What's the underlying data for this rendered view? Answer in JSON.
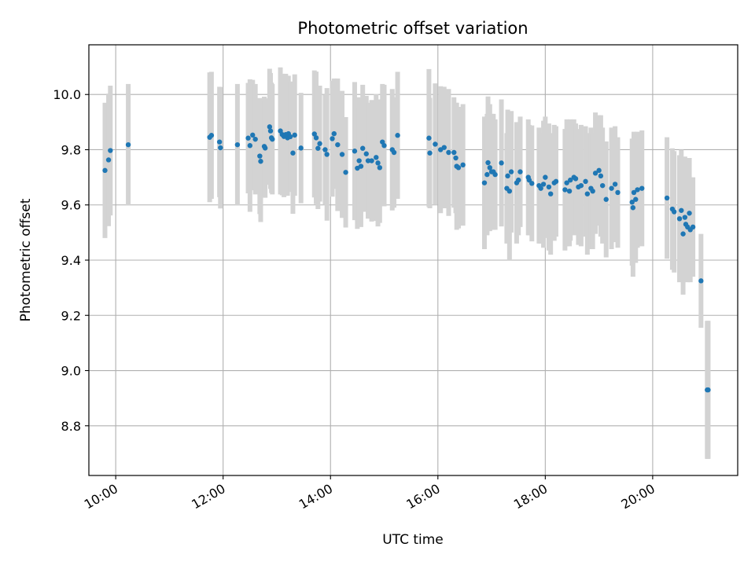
{
  "chart_data": {
    "type": "scatter",
    "title": "Photometric offset variation",
    "xlabel": "UTC time",
    "ylabel": "Photometric offset",
    "x_unit": "UTC time (HH:MM)",
    "xlim": [
      "09:30",
      "21:35"
    ],
    "ylim": [
      8.62,
      10.18
    ],
    "x_ticks": [
      "10:00",
      "12:00",
      "14:00",
      "16:00",
      "18:00",
      "20:00"
    ],
    "y_ticks": [
      "8.8",
      "9.0",
      "9.2",
      "9.4",
      "9.6",
      "9.8",
      "10.0"
    ],
    "grid": true,
    "legend": "none",
    "colors": {
      "points": "#1f77b4",
      "errorbars": "#d3d3d3",
      "grid": "#b0b0b0"
    },
    "series": [
      {
        "points": [
          [
            "09:48",
            9.725,
            0.245
          ],
          [
            "09:52",
            9.763,
            0.24
          ],
          [
            "09:54",
            9.797,
            0.235
          ],
          [
            "10:14",
            9.818,
            0.22
          ],
          [
            "11:45",
            9.845,
            0.235
          ],
          [
            "11:47",
            9.852,
            0.23
          ],
          [
            "11:56",
            9.828,
            0.2
          ],
          [
            "11:57",
            9.807,
            0.22
          ],
          [
            "12:16",
            9.818,
            0.22
          ],
          [
            "12:28",
            9.842,
            0.2
          ],
          [
            "12:30",
            9.815,
            0.24
          ],
          [
            "12:33",
            9.853,
            0.2
          ],
          [
            "12:36",
            9.838,
            0.2
          ],
          [
            "12:41",
            9.777,
            0.21
          ],
          [
            "12:42",
            9.758,
            0.22
          ],
          [
            "12:46",
            9.812,
            0.18
          ],
          [
            "12:47",
            9.806,
            0.18
          ],
          [
            "12:52",
            9.883,
            0.21
          ],
          [
            "12:53",
            9.868,
            0.21
          ],
          [
            "12:54",
            9.843,
            0.2
          ],
          [
            "12:55",
            9.838,
            0.2
          ],
          [
            "13:04",
            9.868,
            0.23
          ],
          [
            "13:06",
            9.855,
            0.22
          ],
          [
            "13:08",
            9.848,
            0.22
          ],
          [
            "13:10",
            9.855,
            0.22
          ],
          [
            "13:12",
            9.843,
            0.21
          ],
          [
            "13:13",
            9.858,
            0.21
          ],
          [
            "13:15",
            9.847,
            0.2
          ],
          [
            "13:18",
            9.788,
            0.22
          ],
          [
            "13:20",
            9.853,
            0.22
          ],
          [
            "13:27",
            9.806,
            0.2
          ],
          [
            "13:42",
            9.857,
            0.23
          ],
          [
            "13:44",
            9.843,
            0.24
          ],
          [
            "13:46",
            9.805,
            0.22
          ],
          [
            "13:48",
            9.822,
            0.21
          ],
          [
            "13:54",
            9.8,
            0.2
          ],
          [
            "13:56",
            9.783,
            0.24
          ],
          [
            "14:02",
            9.84,
            0.21
          ],
          [
            "14:04",
            9.858,
            0.2
          ],
          [
            "14:08",
            9.818,
            0.24
          ],
          [
            "14:13",
            9.783,
            0.23
          ],
          [
            "14:17",
            9.718,
            0.2
          ],
          [
            "14:27",
            9.795,
            0.25
          ],
          [
            "14:30",
            9.733,
            0.22
          ],
          [
            "14:32",
            9.76,
            0.23
          ],
          [
            "14:34",
            9.74,
            0.22
          ],
          [
            "14:36",
            9.805,
            0.23
          ],
          [
            "14:40",
            9.785,
            0.21
          ],
          [
            "14:42",
            9.76,
            0.21
          ],
          [
            "14:46",
            9.76,
            0.22
          ],
          [
            "14:51",
            9.772,
            0.23
          ],
          [
            "14:53",
            9.752,
            0.23
          ],
          [
            "14:55",
            9.735,
            0.2
          ],
          [
            "14:58",
            9.828,
            0.21
          ],
          [
            "15:00",
            9.815,
            0.22
          ],
          [
            "15:09",
            9.8,
            0.22
          ],
          [
            "15:11",
            9.79,
            0.2
          ],
          [
            "15:15",
            9.852,
            0.23
          ],
          [
            "15:50",
            9.842,
            0.25
          ],
          [
            "15:51",
            9.788,
            0.2
          ],
          [
            "15:57",
            9.82,
            0.22
          ],
          [
            "16:03",
            9.8,
            0.23
          ],
          [
            "16:07",
            9.808,
            0.22
          ],
          [
            "16:12",
            9.79,
            0.23
          ],
          [
            "16:18",
            9.79,
            0.2
          ],
          [
            "16:20",
            9.77,
            0.2
          ],
          [
            "16:21",
            9.74,
            0.23
          ],
          [
            "16:23",
            9.735,
            0.22
          ],
          [
            "16:28",
            9.745,
            0.22
          ],
          [
            "16:52",
            9.68,
            0.24
          ],
          [
            "16:55",
            9.71,
            0.22
          ],
          [
            "16:56",
            9.753,
            0.24
          ],
          [
            "16:58",
            9.735,
            0.23
          ],
          [
            "17:00",
            9.72,
            0.21
          ],
          [
            "17:02",
            9.72,
            0.21
          ],
          [
            "17:04",
            9.71,
            0.2
          ],
          [
            "17:11",
            9.752,
            0.23
          ],
          [
            "17:17",
            9.66,
            0.2
          ],
          [
            "17:18",
            9.705,
            0.24
          ],
          [
            "17:20",
            9.65,
            0.25
          ],
          [
            "17:22",
            9.72,
            0.22
          ],
          [
            "17:28",
            9.68,
            0.22
          ],
          [
            "17:30",
            9.69,
            0.2
          ],
          [
            "17:32",
            9.72,
            0.2
          ],
          [
            "17:41",
            9.7,
            0.21
          ],
          [
            "17:42",
            9.69,
            0.2
          ],
          [
            "17:45",
            9.678,
            0.21
          ],
          [
            "17:53",
            9.67,
            0.21
          ],
          [
            "17:55",
            9.66,
            0.2
          ],
          [
            "17:58",
            9.675,
            0.23
          ],
          [
            "18:00",
            9.7,
            0.22
          ],
          [
            "18:04",
            9.665,
            0.23
          ],
          [
            "18:06",
            9.64,
            0.22
          ],
          [
            "18:10",
            9.68,
            0.21
          ],
          [
            "18:12",
            9.685,
            0.2
          ],
          [
            "18:22",
            9.655,
            0.22
          ],
          [
            "18:24",
            9.68,
            0.23
          ],
          [
            "18:27",
            9.65,
            0.2
          ],
          [
            "18:28",
            9.69,
            0.22
          ],
          [
            "18:32",
            9.7,
            0.21
          ],
          [
            "18:34",
            9.695,
            0.2
          ],
          [
            "18:37",
            9.665,
            0.21
          ],
          [
            "18:40",
            9.67,
            0.22
          ],
          [
            "18:45",
            9.685,
            0.2
          ],
          [
            "18:47",
            9.64,
            0.22
          ],
          [
            "18:51",
            9.66,
            0.22
          ],
          [
            "18:53",
            9.65,
            0.21
          ],
          [
            "18:56",
            9.715,
            0.22
          ],
          [
            "19:00",
            9.725,
            0.2
          ],
          [
            "19:02",
            9.705,
            0.22
          ],
          [
            "19:04",
            9.67,
            0.21
          ],
          [
            "19:08",
            9.62,
            0.21
          ],
          [
            "19:14",
            9.66,
            0.22
          ],
          [
            "19:18",
            9.675,
            0.21
          ],
          [
            "19:21",
            9.645,
            0.2
          ],
          [
            "19:37",
            9.61,
            0.23
          ],
          [
            "19:38",
            9.59,
            0.25
          ],
          [
            "19:39",
            9.645,
            0.22
          ],
          [
            "19:41",
            9.62,
            0.23
          ],
          [
            "19:43",
            9.655,
            0.21
          ],
          [
            "19:48",
            9.66,
            0.21
          ],
          [
            "20:16",
            9.625,
            0.22
          ],
          [
            "20:22",
            9.585,
            0.22
          ],
          [
            "20:24",
            9.575,
            0.22
          ],
          [
            "20:30",
            9.55,
            0.23
          ],
          [
            "20:32",
            9.58,
            0.22
          ],
          [
            "20:34",
            9.495,
            0.22
          ],
          [
            "20:36",
            9.555,
            0.22
          ],
          [
            "20:37",
            9.53,
            0.2
          ],
          [
            "20:39",
            9.52,
            0.2
          ],
          [
            "20:41",
            9.57,
            0.2
          ],
          [
            "20:42",
            9.51,
            0.19
          ],
          [
            "20:45",
            9.52,
            0.18
          ],
          [
            "20:54",
            9.325,
            0.17
          ],
          [
            "21:01",
            8.93,
            0.25
          ],
          [
            "21:02",
            8.93,
            0.25
          ]
        ]
      }
    ]
  }
}
